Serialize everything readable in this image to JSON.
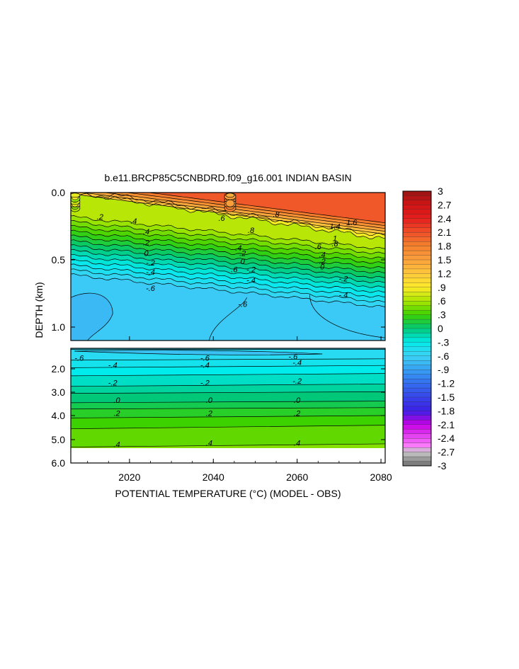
{
  "chart_data": {
    "type": "heatmap",
    "title": "b.e11.BRCP85C5CNBDRD.f09_g16.001 INDIAN BASIN",
    "xlabel": "POTENTIAL TEMPERATURE (°C) (MODEL - OBS)",
    "ylabel": "DEPTH (km)",
    "xlim": [
      2006,
      2081
    ],
    "x_ticks": [
      "2020",
      "2040",
      "2060",
      "2080"
    ],
    "x_tick_values": [
      2020,
      2040,
      2060,
      2080
    ],
    "upper_panel": {
      "ylim": [
        0.0,
        1.1
      ],
      "y_ticks": [
        "0.0",
        "0.5",
        "1.0"
      ],
      "y_tick_values": [
        0.0,
        0.5,
        1.0
      ]
    },
    "lower_panel": {
      "ylim": [
        1.1,
        6.0
      ],
      "y_ticks": [
        "2.0",
        "3.0",
        "4.0",
        "5.0",
        "6.0"
      ],
      "y_tick_values": [
        2.0,
        3.0,
        4.0,
        5.0,
        6.0
      ]
    },
    "colorbar": {
      "labels": [
        "3",
        "2.7",
        "2.4",
        "2.1",
        "1.8",
        "1.5",
        "1.2",
        ".9",
        ".6",
        ".3",
        "0",
        "-.3",
        "-.6",
        "-.9",
        "-1.2",
        "-1.5",
        "-1.8",
        "-2.1",
        "-2.4",
        "-2.7",
        "-3"
      ],
      "values": [
        3,
        2.7,
        2.4,
        2.1,
        1.8,
        1.5,
        1.2,
        0.9,
        0.6,
        0.3,
        0,
        -0.3,
        -0.6,
        -0.9,
        -1.2,
        -1.5,
        -1.8,
        -2.1,
        -2.4,
        -2.7,
        -3
      ]
    },
    "contour_labels": {
      "upper": [
        {
          "text": ".2",
          "x": 2013,
          "depth": 0.18
        },
        {
          "text": ".4",
          "x": 2021,
          "depth": 0.21
        },
        {
          "text": ".4",
          "x": 2024,
          "depth": 0.29
        },
        {
          "text": ".2",
          "x": 2024,
          "depth": 0.37
        },
        {
          "text": "0",
          "x": 2024,
          "depth": 0.45
        },
        {
          "text": "-.2",
          "x": 2025,
          "depth": 0.52
        },
        {
          "text": "-.4",
          "x": 2025,
          "depth": 0.59
        },
        {
          "text": "-.6",
          "x": 2025,
          "depth": 0.71
        },
        {
          "text": ".6",
          "x": 2042,
          "depth": 0.19
        },
        {
          "text": ".8",
          "x": 2049,
          "depth": 0.28
        },
        {
          "text": ".6",
          "x": 2045,
          "depth": 0.57
        },
        {
          "text": ".4",
          "x": 2046,
          "depth": 0.41
        },
        {
          "text": ".2",
          "x": 2047,
          "depth": 0.45
        },
        {
          "text": "0",
          "x": 2047,
          "depth": 0.51
        },
        {
          "text": "-.2",
          "x": 2049,
          "depth": 0.57
        },
        {
          "text": "-.4",
          "x": 2049,
          "depth": 0.65
        },
        {
          "text": "-.6",
          "x": 2047,
          "depth": 0.83
        },
        {
          "text": ".8",
          "x": 2055,
          "depth": 0.16
        },
        {
          "text": "1.4",
          "x": 2069,
          "depth": 0.25
        },
        {
          "text": "1.6",
          "x": 2073,
          "depth": 0.22
        },
        {
          "text": "1",
          "x": 2069,
          "depth": 0.34
        },
        {
          "text": ".8",
          "x": 2069,
          "depth": 0.38
        },
        {
          "text": ".6",
          "x": 2065,
          "depth": 0.4
        },
        {
          "text": ".4",
          "x": 2066,
          "depth": 0.46
        },
        {
          "text": ".2",
          "x": 2066,
          "depth": 0.51
        },
        {
          "text": "0",
          "x": 2066,
          "depth": 0.55
        },
        {
          "text": "-.2",
          "x": 2071,
          "depth": 0.64
        },
        {
          "text": "-.4",
          "x": 2071,
          "depth": 0.76
        }
      ],
      "lower": [
        {
          "text": "-.6",
          "x": 2008,
          "depth": 1.52
        },
        {
          "text": "-.6",
          "x": 2038,
          "depth": 1.52
        },
        {
          "text": "-.6",
          "x": 2059,
          "depth": 1.45
        },
        {
          "text": "-.4",
          "x": 2016,
          "depth": 1.83
        },
        {
          "text": "-.4",
          "x": 2038,
          "depth": 1.83
        },
        {
          "text": "-.4",
          "x": 2060,
          "depth": 1.72
        },
        {
          "text": "-.2",
          "x": 2016,
          "depth": 2.59
        },
        {
          "text": "-.2",
          "x": 2038,
          "depth": 2.59
        },
        {
          "text": "-.2",
          "x": 2060,
          "depth": 2.52
        },
        {
          "text": ".0",
          "x": 2017,
          "depth": 3.33
        },
        {
          "text": ".0",
          "x": 2039,
          "depth": 3.33
        },
        {
          "text": ".0",
          "x": 2060,
          "depth": 3.33
        },
        {
          "text": ".2",
          "x": 2017,
          "depth": 3.9
        },
        {
          "text": ".2",
          "x": 2039,
          "depth": 3.9
        },
        {
          "text": ".2",
          "x": 2060,
          "depth": 3.9
        },
        {
          "text": ".4",
          "x": 2017,
          "depth": 5.2
        },
        {
          "text": ".4",
          "x": 2039,
          "depth": 5.14
        },
        {
          "text": ".4",
          "x": 2060,
          "depth": 5.14
        }
      ]
    }
  }
}
